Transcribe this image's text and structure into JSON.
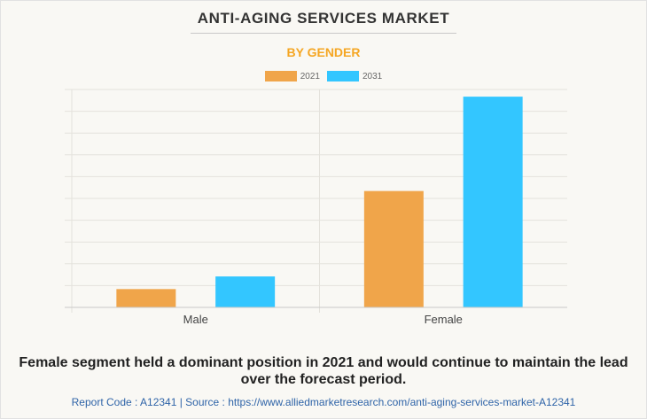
{
  "header": {
    "title": "ANTI-AGING SERVICES MARKET",
    "subtitle": "BY GENDER"
  },
  "colors": {
    "series_2021": "#f0a54a",
    "series_2031": "#33c6ff",
    "subtitle": "#f5a623",
    "footer": "#2f64a8"
  },
  "chart_data": {
    "type": "bar",
    "title": "ANTI-AGING SERVICES MARKET",
    "subtitle": "BY GENDER",
    "categories": [
      "Male",
      "Female"
    ],
    "series": [
      {
        "name": "2021",
        "values": [
          0.84,
          5.34
        ]
      },
      {
        "name": "2031",
        "values": [
          1.42,
          9.67
        ]
      }
    ],
    "xlabel": "",
    "ylabel": "",
    "ylim": [
      0,
      10
    ],
    "y_units": "relative (gridline units, no axis labels shown)",
    "grid": true,
    "gridline_count": 10,
    "legend_position": "top-center"
  },
  "caption": "Female segment held a dominant position in 2021 and would continue to maintain the lead over the forecast period.",
  "footer": "Report Code : A12341  |  Source : https://www.alliedmarketresearch.com/anti-aging-services-market-A12341"
}
